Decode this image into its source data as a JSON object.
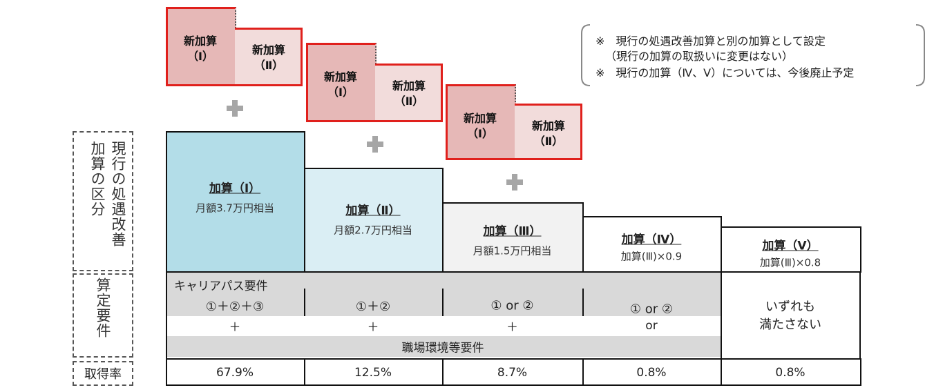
{
  "note": {
    "lines": [
      "※　現行の処遇改善加算と別の加算として設定",
      "（現行の加算の取扱いに変更はない）",
      "※　現行の加算（Ⅳ、Ⅴ）については、今後廃止予定"
    ]
  },
  "new_additions": [
    {
      "left": {
        "name": "新加算",
        "grade": "（Ⅰ）"
      },
      "right": {
        "name": "新加算",
        "grade": "（Ⅱ）"
      }
    },
    {
      "left": {
        "name": "新加算",
        "grade": "（Ⅰ）"
      },
      "right": {
        "name": "新加算",
        "grade": "（Ⅱ）"
      }
    },
    {
      "left": {
        "name": "新加算",
        "grade": "（Ⅰ）"
      },
      "right": {
        "name": "新加算",
        "grade": "（Ⅱ）"
      }
    }
  ],
  "row_labels": {
    "category": "現行の処遇改善加算の区分",
    "requirements": "算定要件",
    "rate": "取得率"
  },
  "career_path": "キャリアパス要件",
  "workplace": "職場環境等要件",
  "columns": [
    {
      "name": "加算（Ⅰ）",
      "amount": "月額3.7万円相当",
      "requirement": "①＋②＋③",
      "connector": "＋",
      "rate": "67.9%"
    },
    {
      "name": "加算（Ⅱ）",
      "amount": "月額2.7万円相当",
      "requirement": "①＋②",
      "connector": "＋",
      "rate": "12.5%"
    },
    {
      "name": "加算（Ⅲ）",
      "amount": "月額1.5万円相当",
      "requirement": "① or ②",
      "connector": "＋",
      "rate": "8.7%"
    },
    {
      "name": "加算（Ⅳ）",
      "amount": "加算(Ⅲ)×0.9",
      "requirement": "① or ②",
      "connector": "or",
      "rate": "0.8%"
    },
    {
      "name": "加算（Ⅴ）",
      "amount": "加算(Ⅲ)×0.8",
      "requirement_lines": [
        "いずれも",
        "満たさない"
      ],
      "rate": "0.8%"
    }
  ]
}
